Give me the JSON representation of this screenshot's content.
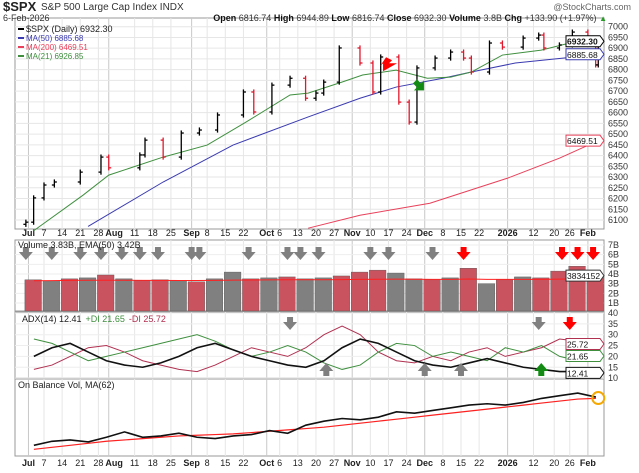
{
  "header": {
    "symbol": "$SPX",
    "name": "S&P 500 Large Cap Index",
    "exchange": "INDX",
    "date": "6-Feb-2026",
    "brand": "@StockCharts.com",
    "open_label": "Open",
    "open": "6816.74",
    "high_label": "High",
    "high": "6944.89",
    "low_label": "Low",
    "low": "6816.74",
    "close_label": "Close",
    "close": "6932.30",
    "volume_label": "Volume",
    "volume": "3.8B",
    "chg_label": "Chg",
    "chg": "+133.90 (+1.97%)",
    "chg_icon": "triangle-up-icon"
  },
  "colors": {
    "up": "#000000",
    "down": "#e0182d",
    "ma50": "#3a3ab0",
    "ma200": "#e8405a",
    "ma21": "#3f8f3f",
    "vol_up": "#808080",
    "vol_down": "#c9535e",
    "adx": "#111111",
    "plus_di": "#3f8f3f",
    "minus_di": "#b03050",
    "obv": "#111111",
    "obv_ma": "#ff2020",
    "signal_gray": "#808080",
    "signal_red": "#ff0000",
    "signal_green": "#138a13",
    "highlight": "#f5a800"
  },
  "chart_data": [
    {
      "type": "ohlc",
      "title": "$SPX (Daily) 6932.30",
      "yticks": [
        6100,
        6150,
        6200,
        6250,
        6300,
        6350,
        6400,
        6450,
        6500,
        6550,
        6600,
        6650,
        6700,
        6750,
        6800,
        6850,
        6900,
        6950,
        7000
      ],
      "ylim": [
        6100,
        7000
      ],
      "grid": true,
      "legend": "top-left",
      "legend_items": [
        {
          "label": "$SPX (Daily) 6932.30",
          "color": "#000000"
        },
        {
          "label": "MA(50) 6885.68",
          "color": "#3a3ab0"
        },
        {
          "label": "MA(200) 6469.51",
          "color": "#e8405a"
        },
        {
          "label": "MA(21) 6926.85",
          "color": "#3f8f3f"
        }
      ],
      "tags": [
        {
          "label": "6932.30",
          "value": 6932.3,
          "color": "#000000"
        },
        {
          "label": "6885.68",
          "value": 6885.68,
          "color": "#3a3ab0"
        },
        {
          "label": "6469.51",
          "value": 6469.51,
          "color": "#e8405a"
        }
      ],
      "close": [
        [
          "2025-06-30",
          6090
        ],
        [
          "2025-07-03",
          6203
        ],
        [
          "2025-07-07",
          6263
        ],
        [
          "2025-07-11",
          6277
        ],
        [
          "2025-07-21",
          6323
        ],
        [
          "2025-07-29",
          6393
        ],
        [
          "2025-08-01",
          6343
        ],
        [
          "2025-08-13",
          6403
        ],
        [
          "2025-08-15",
          6472
        ],
        [
          "2025-08-22",
          6393
        ],
        [
          "2025-08-29",
          6505
        ],
        [
          "2025-09-05",
          6519
        ],
        [
          "2025-09-12",
          6589
        ],
        [
          "2025-09-22",
          6696
        ],
        [
          "2025-09-26",
          6603
        ],
        [
          "2025-10-03",
          6728
        ],
        [
          "2025-10-10",
          6760
        ],
        [
          "2025-10-16",
          6667
        ],
        [
          "2025-10-20",
          6691
        ],
        [
          "2025-10-23",
          6742
        ],
        [
          "2025-10-29",
          6901
        ],
        [
          "2025-11-06",
          6831
        ],
        [
          "2025-11-11",
          6696
        ],
        [
          "2025-11-14",
          6859
        ],
        [
          "2025-11-21",
          6649
        ],
        [
          "2025-11-25",
          6556
        ],
        [
          "2025-11-28",
          6808
        ],
        [
          "2025-12-05",
          6854
        ],
        [
          "2025-12-11",
          6882
        ],
        [
          "2025-12-16",
          6854
        ],
        [
          "2025-12-19",
          6789
        ],
        [
          "2025-12-26",
          6924
        ],
        [
          "2025-12-31",
          6905
        ],
        [
          "2026-01-08",
          6947
        ],
        [
          "2026-01-14",
          6961
        ],
        [
          "2026-01-16",
          6901
        ],
        [
          "2026-01-22",
          6915
        ],
        [
          "2026-01-27",
          6975
        ],
        [
          "2026-02-02",
          6947
        ],
        [
          "2026-02-05",
          6822
        ],
        [
          "2026-02-06",
          6932.3
        ]
      ],
      "ma50": [
        [
          "2025-07-24",
          6070
        ],
        [
          "2025-08-22",
          6277
        ],
        [
          "2025-09-18",
          6449
        ],
        [
          "2025-10-17",
          6580
        ],
        [
          "2025-11-06",
          6667
        ],
        [
          "2025-11-20",
          6719
        ],
        [
          "2025-12-08",
          6760
        ],
        [
          "2025-12-19",
          6789
        ],
        [
          "2026-01-05",
          6831
        ],
        [
          "2026-01-30",
          6862
        ],
        [
          "2026-02-06",
          6885.68
        ]
      ],
      "ma21": [
        [
          "2025-07-03",
          6050
        ],
        [
          "2025-07-22",
          6215
        ],
        [
          "2025-08-01",
          6309
        ],
        [
          "2025-08-22",
          6393
        ],
        [
          "2025-09-08",
          6449
        ],
        [
          "2025-09-23",
          6556
        ],
        [
          "2025-10-10",
          6682
        ],
        [
          "2025-10-17",
          6691
        ],
        [
          "2025-10-30",
          6742
        ],
        [
          "2025-11-07",
          6775
        ],
        [
          "2025-11-20",
          6798
        ],
        [
          "2025-12-02",
          6760
        ],
        [
          "2025-12-11",
          6765
        ],
        [
          "2025-12-19",
          6789
        ],
        [
          "2025-12-31",
          6868
        ],
        [
          "2026-01-15",
          6891
        ],
        [
          "2026-01-26",
          6924
        ],
        [
          "2026-02-05",
          6938
        ],
        [
          "2026-02-06",
          6926.85
        ]
      ],
      "ma200": [
        [
          "2025-10-17",
          6062
        ],
        [
          "2025-11-06",
          6122
        ],
        [
          "2025-12-03",
          6178
        ],
        [
          "2026-01-02",
          6295
        ],
        [
          "2026-01-22",
          6388
        ],
        [
          "2026-02-06",
          6469.51
        ]
      ],
      "signals": [
        {
          "date": "2025-11-18",
          "value": 6830,
          "kind": "red"
        },
        {
          "date": "2025-11-28",
          "value": 6755,
          "kind": "green"
        }
      ]
    },
    {
      "type": "bar",
      "title": "Volume 3.83B, EMA(50) 3.42B",
      "yticks": [
        {
          "v": 1,
          "l": "1B"
        },
        {
          "v": 2,
          "l": "2B"
        },
        {
          "v": 3,
          "l": "3B"
        },
        {
          "v": 4,
          "l": "4B"
        },
        {
          "v": 5,
          "l": "5B"
        },
        {
          "v": 6,
          "l": "6B"
        },
        {
          "v": 7,
          "l": "7B"
        }
      ],
      "ylim": [
        0.7,
        7.2
      ],
      "tag": {
        "label": "3834152",
        "value": 3.834
      },
      "weeks": [
        "2025-06-30",
        "2025-07-07",
        "2025-07-14",
        "2025-07-21",
        "2025-07-28",
        "2025-08-04",
        "2025-08-11",
        "2025-08-18",
        "2025-08-25",
        "2025-09-01",
        "2025-09-08",
        "2025-09-15",
        "2025-09-22",
        "2025-09-29",
        "2025-10-06",
        "2025-10-13",
        "2025-10-20",
        "2025-10-27",
        "2025-11-03",
        "2025-11-10",
        "2025-11-17",
        "2025-11-24",
        "2025-12-01",
        "2025-12-08",
        "2025-12-15",
        "2025-12-22",
        "2025-12-29",
        "2026-01-05",
        "2026-01-12",
        "2026-01-19",
        "2026-01-26",
        "2026-02-02"
      ],
      "volume": [
        3.4,
        3.3,
        3.5,
        3.6,
        3.9,
        3.5,
        3.3,
        3.4,
        3.3,
        3.2,
        3.5,
        4.2,
        3.5,
        3.6,
        3.7,
        3.5,
        3.6,
        3.8,
        4.2,
        4.4,
        4.1,
        3.5,
        3.4,
        3.6,
        4.6,
        3.0,
        3.4,
        3.7,
        3.6,
        4.3,
        4.8,
        3.83
      ],
      "down": [
        1,
        0,
        1,
        0,
        1,
        0,
        1,
        1,
        0,
        1,
        0,
        0,
        1,
        0,
        1,
        0,
        0,
        1,
        1,
        1,
        0,
        0,
        1,
        0,
        1,
        0,
        1,
        0,
        1,
        1,
        1,
        1
      ],
      "ema50": [
        3.3,
        3.32,
        3.34,
        3.35,
        3.36,
        3.35,
        3.34,
        3.34,
        3.33,
        3.33,
        3.34,
        3.37,
        3.38,
        3.39,
        3.4,
        3.4,
        3.41,
        3.42,
        3.44,
        3.46,
        3.47,
        3.46,
        3.45,
        3.45,
        3.48,
        3.45,
        3.44,
        3.45,
        3.45,
        3.47,
        3.5,
        3.42
      ],
      "signals": [
        {
          "date": "2025-06-30",
          "kind": "gray"
        },
        {
          "date": "2025-07-10",
          "kind": "gray"
        },
        {
          "date": "2025-07-21",
          "kind": "gray"
        },
        {
          "date": "2025-07-29",
          "kind": "gray"
        },
        {
          "date": "2025-08-06",
          "kind": "gray"
        },
        {
          "date": "2025-08-13",
          "kind": "gray"
        },
        {
          "date": "2025-08-20",
          "kind": "gray"
        },
        {
          "date": "2025-09-02",
          "kind": "gray"
        },
        {
          "date": "2025-09-05",
          "kind": "gray"
        },
        {
          "date": "2025-09-24",
          "kind": "gray"
        },
        {
          "date": "2025-10-09",
          "kind": "gray"
        },
        {
          "date": "2025-10-14",
          "kind": "gray"
        },
        {
          "date": "2025-10-21",
          "kind": "gray"
        },
        {
          "date": "2025-11-10",
          "kind": "gray"
        },
        {
          "date": "2025-11-17",
          "kind": "gray"
        },
        {
          "date": "2025-12-04",
          "kind": "gray"
        },
        {
          "date": "2025-12-16",
          "kind": "red"
        },
        {
          "date": "2026-01-23",
          "kind": "red"
        },
        {
          "date": "2026-01-29",
          "kind": "red"
        },
        {
          "date": "2026-02-04",
          "kind": "red"
        }
      ]
    },
    {
      "type": "line",
      "title_adx": "ADX(14) 12.41",
      "title_plus": "+DI 21.65",
      "title_minus": "-DI 25.72",
      "yticks": [
        10,
        15,
        20,
        25,
        30,
        35,
        40
      ],
      "ylim": [
        10,
        40
      ],
      "tags": [
        {
          "label": "25.72",
          "value": 25.72,
          "color": "#b03050"
        },
        {
          "label": "21.65",
          "value": 21.65,
          "color": "#3f8f3f"
        },
        {
          "label": "12.41",
          "value": 12.41,
          "color": "#111111"
        }
      ],
      "adx": [
        20,
        24,
        26,
        22,
        18,
        16,
        15,
        17,
        20,
        24,
        26,
        23,
        20,
        18,
        16,
        15,
        18,
        24,
        28,
        26,
        22,
        18,
        16,
        15,
        17,
        19,
        17,
        15,
        14,
        13,
        13,
        12.41
      ],
      "plus_di": [
        28,
        26,
        22,
        18,
        20,
        22,
        24,
        26,
        28,
        30,
        27,
        23,
        20,
        22,
        25,
        22,
        17,
        14,
        16,
        22,
        26,
        25,
        20,
        22,
        20,
        18,
        24,
        22,
        25,
        20,
        18,
        21.65
      ],
      "minus_di": [
        14,
        16,
        20,
        24,
        25,
        22,
        18,
        16,
        14,
        13,
        16,
        20,
        24,
        22,
        20,
        24,
        30,
        34,
        30,
        22,
        18,
        17,
        20,
        18,
        22,
        24,
        20,
        22,
        24,
        28,
        27,
        25.72
      ],
      "signals": [
        {
          "date": "2025-10-10",
          "kind": "gray-down"
        },
        {
          "date": "2025-10-24",
          "kind": "gray-up"
        },
        {
          "date": "2025-12-01",
          "kind": "gray-up"
        },
        {
          "date": "2025-12-15",
          "kind": "gray-up"
        },
        {
          "date": "2026-01-14",
          "kind": "gray-down"
        },
        {
          "date": "2026-01-15",
          "kind": "green-up"
        },
        {
          "date": "2026-01-26",
          "kind": "red-down"
        }
      ]
    },
    {
      "type": "line",
      "title": "On Balance Vol, MA(62)",
      "obv": [
        10,
        16,
        18,
        15,
        22,
        30,
        22,
        24,
        28,
        22,
        20,
        24,
        26,
        32,
        28,
        40,
        46,
        50,
        48,
        52,
        60,
        58,
        62,
        66,
        70,
        72,
        70,
        74,
        80,
        84,
        88,
        82
      ],
      "ma62": [
        4,
        7,
        10,
        13,
        16,
        18,
        20,
        22,
        24,
        25,
        26,
        27,
        29,
        31,
        33,
        35,
        37,
        40,
        43,
        46,
        49,
        52,
        55,
        58,
        61,
        64,
        67,
        70,
        73,
        76,
        79,
        80
      ],
      "highlight": {
        "date": "2026-02-06"
      }
    }
  ],
  "xaxis": {
    "ticks": [
      {
        "label": "Jul",
        "date": "2025-07-01",
        "bold": true
      },
      {
        "label": "7",
        "date": "2025-07-07"
      },
      {
        "label": "14",
        "date": "2025-07-14"
      },
      {
        "label": "21",
        "date": "2025-07-21"
      },
      {
        "label": "28",
        "date": "2025-07-28"
      },
      {
        "label": "Aug",
        "date": "2025-08-01",
        "bold": true
      },
      {
        "label": "11",
        "date": "2025-08-11"
      },
      {
        "label": "18",
        "date": "2025-08-18"
      },
      {
        "label": "25",
        "date": "2025-08-25"
      },
      {
        "label": "Sep",
        "date": "2025-09-02",
        "bold": true
      },
      {
        "label": "8",
        "date": "2025-09-08"
      },
      {
        "label": "15",
        "date": "2025-09-15"
      },
      {
        "label": "22",
        "date": "2025-09-22"
      },
      {
        "label": "Oct",
        "date": "2025-10-01",
        "bold": true
      },
      {
        "label": "6",
        "date": "2025-10-06"
      },
      {
        "label": "13",
        "date": "2025-10-13"
      },
      {
        "label": "20",
        "date": "2025-10-20"
      },
      {
        "label": "27",
        "date": "2025-10-27"
      },
      {
        "label": "Nov",
        "date": "2025-11-03",
        "bold": true
      },
      {
        "label": "10",
        "date": "2025-11-10"
      },
      {
        "label": "17",
        "date": "2025-11-17"
      },
      {
        "label": "24",
        "date": "2025-11-24"
      },
      {
        "label": "Dec",
        "date": "2025-12-01",
        "bold": true
      },
      {
        "label": "8",
        "date": "2025-12-08"
      },
      {
        "label": "15",
        "date": "2025-12-15"
      },
      {
        "label": "22",
        "date": "2025-12-22"
      },
      {
        "label": "2026",
        "date": "2026-01-02",
        "bold": true
      },
      {
        "label": "12",
        "date": "2026-01-12"
      },
      {
        "label": "20",
        "date": "2026-01-20"
      },
      {
        "label": "26",
        "date": "2026-01-26"
      },
      {
        "label": "Feb",
        "date": "2026-02-02",
        "bold": true
      }
    ]
  }
}
